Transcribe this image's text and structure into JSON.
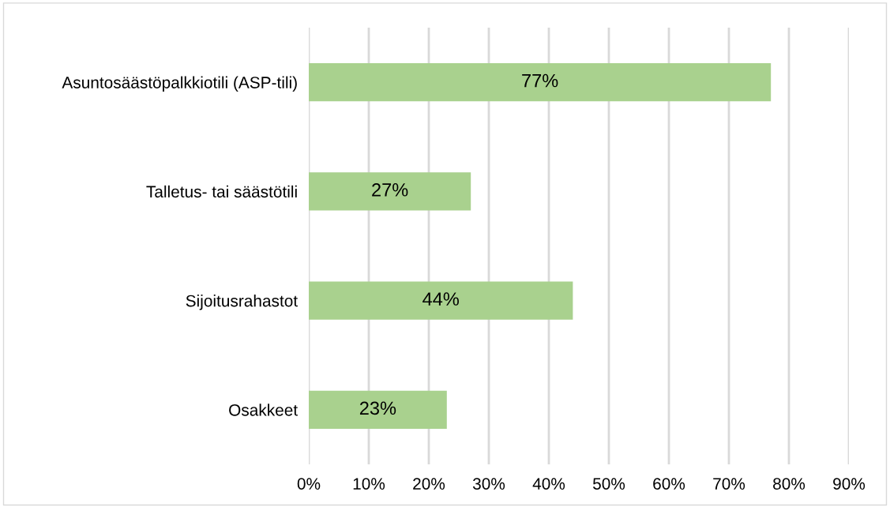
{
  "chart_data": {
    "type": "bar",
    "orientation": "horizontal",
    "categories": [
      "Asuntosäästöpalkkiotili (ASP-tili)",
      "Talletus- tai säästötili",
      "Sijoitusrahastot",
      "Osakkeet"
    ],
    "values": [
      77,
      27,
      44,
      23
    ],
    "color": "#a9d18e",
    "value_labels": [
      "77%",
      "27%",
      "44%",
      "23%"
    ],
    "xlim": [
      0,
      90
    ],
    "xticks": [
      {
        "value": 0,
        "label": "0%"
      },
      {
        "value": 10,
        "label": "10%"
      },
      {
        "value": 20,
        "label": "20%"
      },
      {
        "value": 30,
        "label": "30%"
      },
      {
        "value": 40,
        "label": "40%"
      },
      {
        "value": 50,
        "label": "50%"
      },
      {
        "value": 60,
        "label": "60%"
      },
      {
        "value": 70,
        "label": "70%"
      },
      {
        "value": 80,
        "label": "80%"
      },
      {
        "value": 90,
        "label": "90%"
      }
    ],
    "grid": "x",
    "legend": false
  }
}
